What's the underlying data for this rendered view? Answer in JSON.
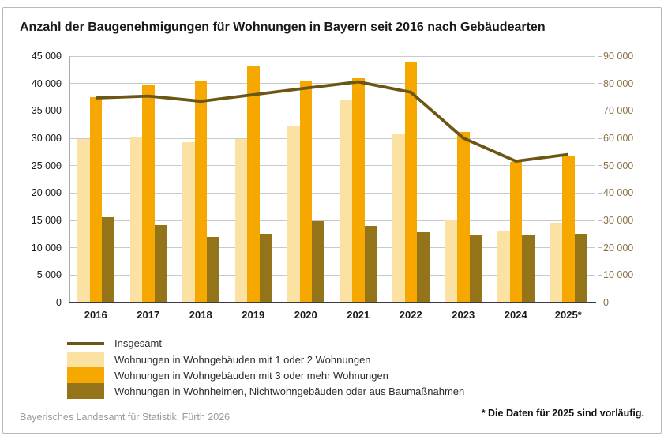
{
  "title": "Anzahl der Baugenehmigungen für Wohnungen in Bayern seit 2016 nach Gebäudearten",
  "footer": {
    "source": "Bayerisches Landesamt für Statistik, Fürth 2026",
    "footnote": "* Die Daten für 2025 sind vorläufig."
  },
  "colors": {
    "grid": "#c6cbd0",
    "tick": "#b3b9be",
    "axis_vertical": "#a6acb2",
    "axis_bottom": "#3b3b3a",
    "left_axis_text": "#1a1a1a",
    "right_axis_text": "#8b7346"
  },
  "chart_data": {
    "type": "bar",
    "subtype": "grouped-bars-with-line-overlay",
    "categories": [
      "2016",
      "2017",
      "2018",
      "2019",
      "2020",
      "2021",
      "2022",
      "2023",
      "2024",
      "2025*"
    ],
    "series": [
      {
        "name": "Wohnungen in Wohngebäuden mit 1 oder 2 Wohnungen",
        "type": "bar",
        "axis": "left",
        "color": "#fbe2a3",
        "values": [
          29900,
          30300,
          29300,
          29800,
          32200,
          36900,
          30800,
          15100,
          13000,
          14500
        ]
      },
      {
        "name": "Wohnungen in Wohngebäuden mit 3 oder mehr Wohnungen",
        "type": "bar",
        "axis": "left",
        "color": "#f6a800",
        "values": [
          37500,
          39700,
          40500,
          43300,
          40400,
          40900,
          43800,
          31100,
          25700,
          26800
        ]
      },
      {
        "name": "Wohnungen in Wohnheimen, Nichtwohngebäuden oder aus Baumaßnahmen",
        "type": "bar",
        "axis": "left",
        "color": "#947419",
        "values": [
          15600,
          14200,
          12000,
          12600,
          14900,
          14000,
          12900,
          12300,
          12300,
          12500
        ]
      },
      {
        "name": "Insgesamt",
        "type": "line",
        "axis": "right",
        "color": "#6b5616",
        "values": [
          74700,
          75400,
          73500,
          75900,
          78300,
          80600,
          76800,
          60100,
          51600,
          54100
        ]
      }
    ],
    "left_axis": {
      "min": 0,
      "max": 45000,
      "step": 5000,
      "tick_labels": [
        "45 000",
        "40 000",
        "35 000",
        "30 000",
        "25 000",
        "20 000",
        "15 000",
        "10 000",
        "5 000",
        "0"
      ]
    },
    "right_axis": {
      "min": 0,
      "max": 90000,
      "step": 10000,
      "tick_labels": [
        "90 000",
        "80 000",
        "70 000",
        "60 000",
        "50 000",
        "40 000",
        "30 000",
        "20 000",
        "10 000",
        "0"
      ]
    },
    "grid": true,
    "legend_position": "bottom",
    "xlabel": "",
    "ylabel": ""
  }
}
